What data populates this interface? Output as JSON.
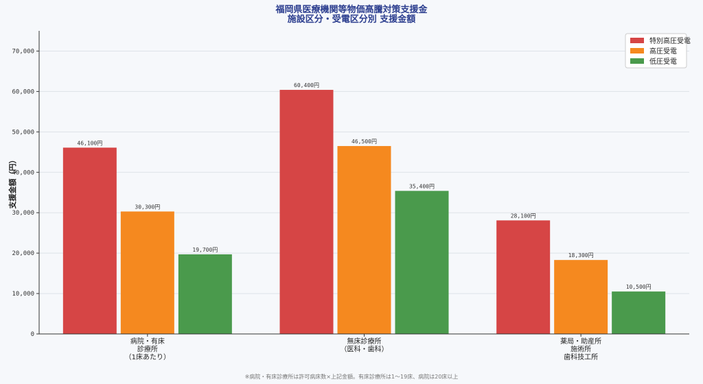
{
  "chart_data": {
    "type": "bar",
    "title": [
      "福岡県医療機関等物価高騰対策支援金",
      "施設区分・受電区分別 支援金額"
    ],
    "ylabel": "支援金額（円）",
    "xlabel": "",
    "ylim": [
      0,
      75000
    ],
    "yticks": [
      0,
      10000,
      20000,
      30000,
      40000,
      50000,
      60000,
      70000
    ],
    "ytick_labels": [
      "0",
      "10,000",
      "20,000",
      "30,000",
      "40,000",
      "50,000",
      "60,000",
      "70,000"
    ],
    "grid": true,
    "legend_position": "top-right",
    "categories": [
      [
        "病院・有床",
        "診療所",
        "（1床あたり）"
      ],
      [
        "無床診療所",
        "（医科・歯科）"
      ],
      [
        "薬局・助産所",
        "施術所",
        "歯科技工所"
      ]
    ],
    "series": [
      {
        "name": "特別高圧受電",
        "color": "#d64545",
        "values": [
          46100,
          60400,
          28100
        ],
        "labels": [
          "46,100円",
          "60,400円",
          "28,100円"
        ]
      },
      {
        "name": "高圧受電",
        "color": "#f5891f",
        "values": [
          30300,
          46500,
          18300
        ],
        "labels": [
          "30,300円",
          "46,500円",
          "18,300円"
        ]
      },
      {
        "name": "低圧受電",
        "color": "#4a9a4c",
        "values": [
          19700,
          35400,
          10500
        ],
        "labels": [
          "19,700円",
          "35,400円",
          "10,500円"
        ]
      }
    ],
    "footnote": "※病院・有床診療所は許可病床数×上記金額。有床診療所は1〜19床、病院は20床以上"
  }
}
